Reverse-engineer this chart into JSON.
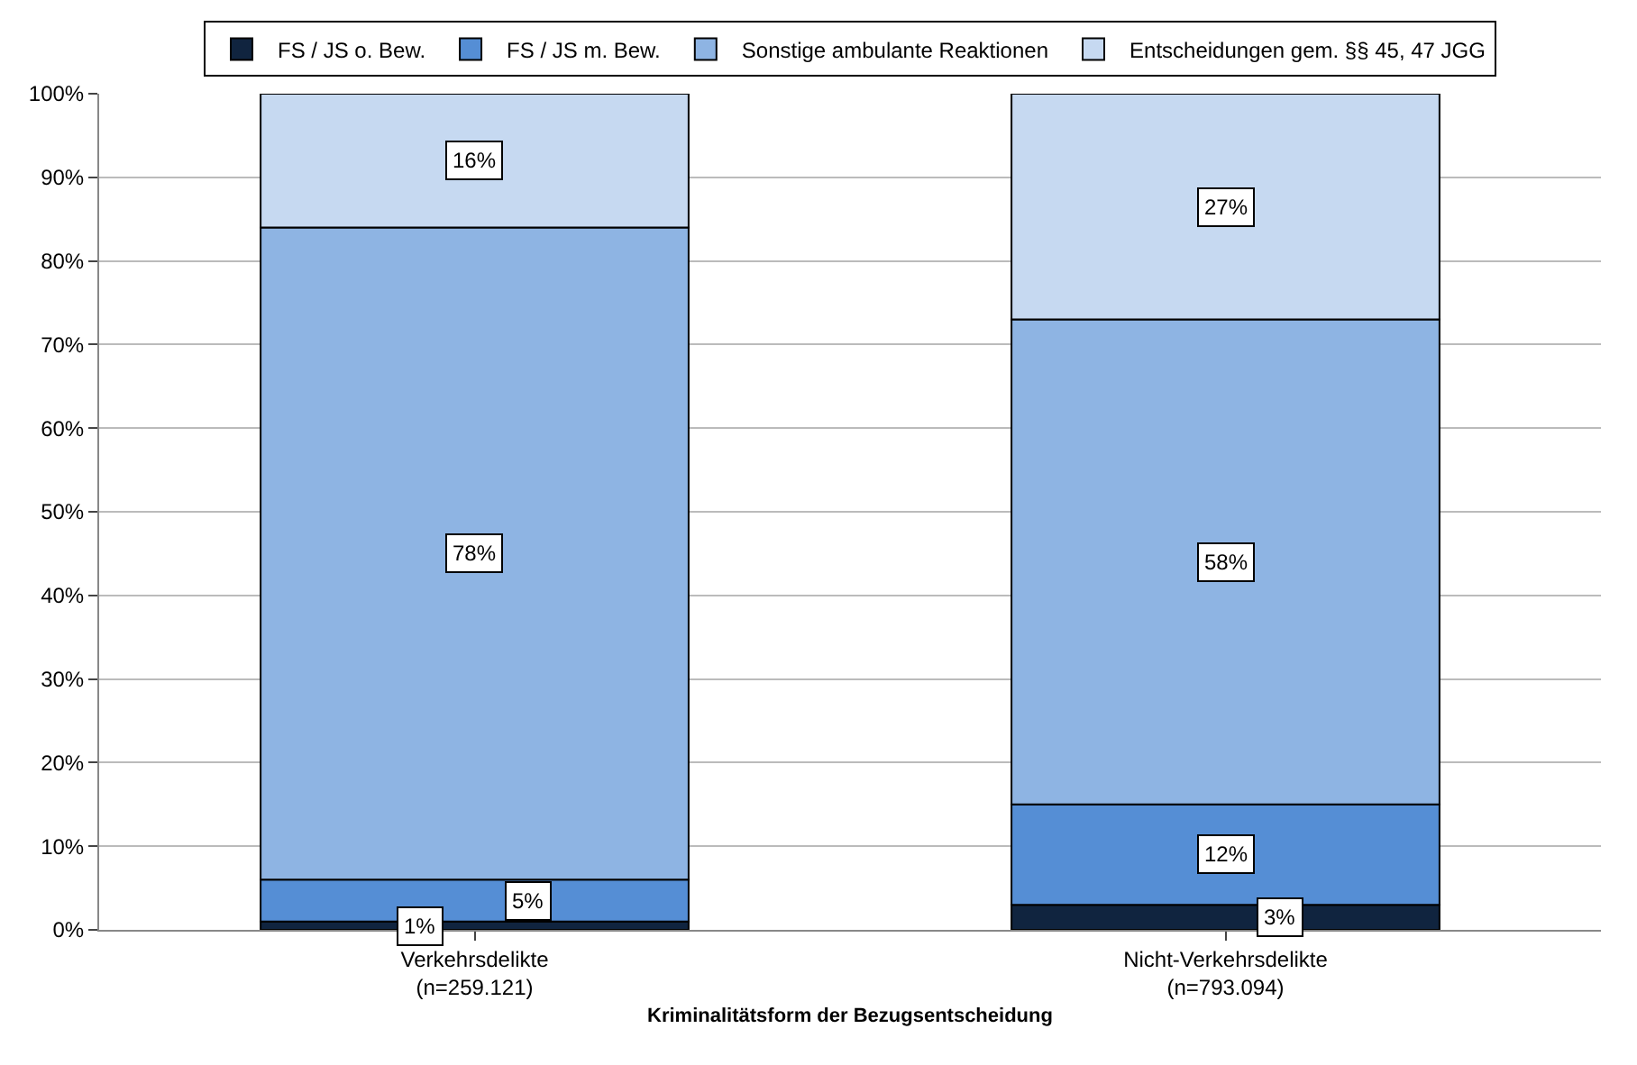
{
  "chart_data": {
    "type": "bar",
    "stacked": true,
    "xlabel": "Kriminalitätsform der Bezugsentscheidung",
    "categories": [
      "Verkehrsdelikte\n(n=259.121)",
      "Nicht-Verkehrsdelikte\n(n=793.094)"
    ],
    "series": [
      {
        "name": "FS / JS o. Bew.",
        "color": "#10243f",
        "values": [
          1,
          3
        ],
        "value_labels": [
          "1%",
          "3%"
        ]
      },
      {
        "name": "FS / JS m. Bew.",
        "color": "#558ed5",
        "values": [
          5,
          12
        ],
        "value_labels": [
          "5%",
          "12%"
        ]
      },
      {
        "name": "Sonstige ambulante Reaktionen",
        "color": "#8eb4e3",
        "values": [
          78,
          58
        ],
        "value_labels": [
          "78%",
          "58%"
        ]
      },
      {
        "name": "Entscheidungen gem. §§ 45, 47 JGG",
        "color": "#c6d9f1",
        "values": [
          16,
          27
        ],
        "value_labels": [
          "16%",
          "27%"
        ]
      }
    ],
    "ylim": [
      0,
      100
    ],
    "yticks": [
      {
        "value": 0,
        "label": "0%"
      },
      {
        "value": 10,
        "label": "10%"
      },
      {
        "value": 20,
        "label": "20%"
      },
      {
        "value": 30,
        "label": "30%"
      },
      {
        "value": 40,
        "label": "40%"
      },
      {
        "value": 50,
        "label": "50%"
      },
      {
        "value": 60,
        "label": "60%"
      },
      {
        "value": 70,
        "label": "70%"
      },
      {
        "value": 80,
        "label": "80%"
      },
      {
        "value": 90,
        "label": "90%"
      },
      {
        "value": 100,
        "label": "100%"
      }
    ],
    "grid": "y",
    "legend": "top"
  }
}
